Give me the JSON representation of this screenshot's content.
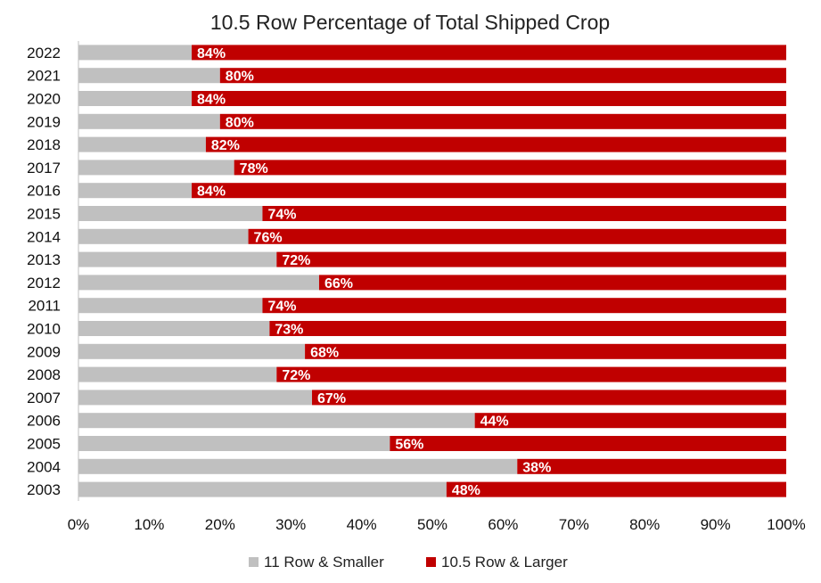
{
  "chart_data": {
    "type": "bar",
    "orientation": "horizontal",
    "stacked": true,
    "title": "10.5 Row Percentage of Total Shipped Crop",
    "categories": [
      "2022",
      "2021",
      "2020",
      "2019",
      "2018",
      "2017",
      "2016",
      "2015",
      "2014",
      "2013",
      "2012",
      "2011",
      "2010",
      "2009",
      "2008",
      "2007",
      "2006",
      "2005",
      "2004",
      "2003"
    ],
    "series": [
      {
        "name": "11 Row & Smaller",
        "color": "#c0c0c0",
        "values": [
          16,
          20,
          16,
          20,
          18,
          22,
          16,
          26,
          24,
          28,
          34,
          26,
          27,
          32,
          28,
          33,
          56,
          44,
          62,
          52
        ]
      },
      {
        "name": "10.5 Row & Larger",
        "color": "#c00000",
        "values": [
          84,
          80,
          84,
          80,
          82,
          78,
          84,
          74,
          76,
          72,
          66,
          74,
          73,
          68,
          72,
          67,
          44,
          56,
          38,
          48
        ]
      }
    ],
    "data_labels": [
      "84%",
      "80%",
      "84%",
      "80%",
      "82%",
      "78%",
      "84%",
      "74%",
      "76%",
      "72%",
      "66%",
      "74%",
      "73%",
      "68%",
      "72%",
      "67%",
      "44%",
      "56%",
      "38%",
      "48%"
    ],
    "xlim": [
      0,
      100
    ],
    "xticks": [
      "0%",
      "10%",
      "20%",
      "30%",
      "40%",
      "50%",
      "60%",
      "70%",
      "80%",
      "90%",
      "100%"
    ],
    "grid": false,
    "legend_position": "bottom"
  }
}
